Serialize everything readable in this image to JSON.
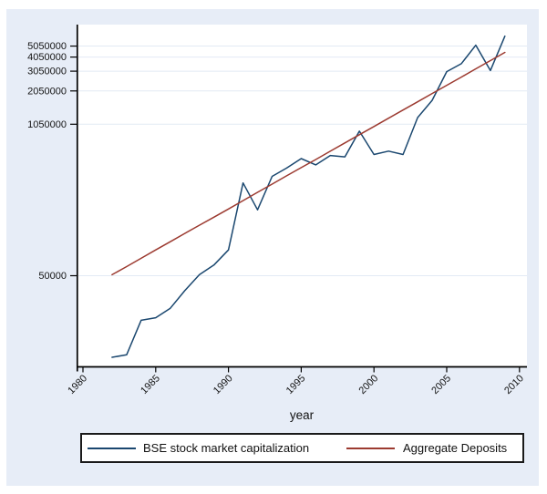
{
  "colors": {
    "canvas_bg": "#e7edf7",
    "plot_bg": "#ffffff",
    "grid": "#e2eaf4",
    "axis": "#000000",
    "text": "#141414",
    "legend_border": "#1a1a1a",
    "legend_bg": "#ffffff",
    "series_navy": "#1a476f",
    "series_maroon": "#9c3a30"
  },
  "chart_data": {
    "type": "line",
    "title": "",
    "xlabel": "year",
    "ylabel": "",
    "grid": true,
    "legend_position": "bottom",
    "x_axis": {
      "min": 1979.6,
      "max": 2010.5,
      "ticks": [
        1980,
        1985,
        1990,
        1995,
        2000,
        2005,
        2010
      ],
      "tick_label_angle": 45
    },
    "y_axis": {
      "scale": "log",
      "ticks": [
        {
          "value": 50000,
          "label": "50000"
        },
        {
          "value": 1050000,
          "label": "1050000"
        },
        {
          "value": 2050000,
          "label": "2050000"
        },
        {
          "value": 3050000,
          "label": "3050000"
        },
        {
          "value": 4050000,
          "label": "4050000"
        },
        {
          "value": 5050000,
          "label": "5050000"
        }
      ]
    },
    "x": [
      1982,
      1983,
      1984,
      1985,
      1986,
      1987,
      1988,
      1989,
      1990,
      1991,
      1992,
      1993,
      1994,
      1995,
      1996,
      1997,
      1998,
      1999,
      2000,
      2001,
      2002,
      2003,
      2004,
      2005,
      2006,
      2007,
      2008,
      2009
    ],
    "series": [
      {
        "name": "BSE stock market capitalization",
        "color": "#1a476f",
        "values": [
          9700,
          10200,
          20400,
          21500,
          26000,
          37000,
          51000,
          62000,
          84000,
          323000,
          188000,
          368000,
          435000,
          526000,
          464000,
          560000,
          545000,
          913000,
          572000,
          612000,
          572000,
          1201000,
          1698000,
          3022000,
          3545000,
          5138000,
          3086000,
          6166000
        ]
      },
      {
        "name": "Aggregate Deposits",
        "color": "#9c3a30",
        "values": [
          51000,
          60000,
          71000,
          84000,
          99000,
          117000,
          138000,
          162000,
          191000,
          226000,
          267000,
          315000,
          372000,
          439000,
          517000,
          611000,
          721000,
          850000,
          1003000,
          1184000,
          1397000,
          1649000,
          1945000,
          2296000,
          2709000,
          3196000,
          3772000,
          4450000
        ]
      }
    ]
  }
}
